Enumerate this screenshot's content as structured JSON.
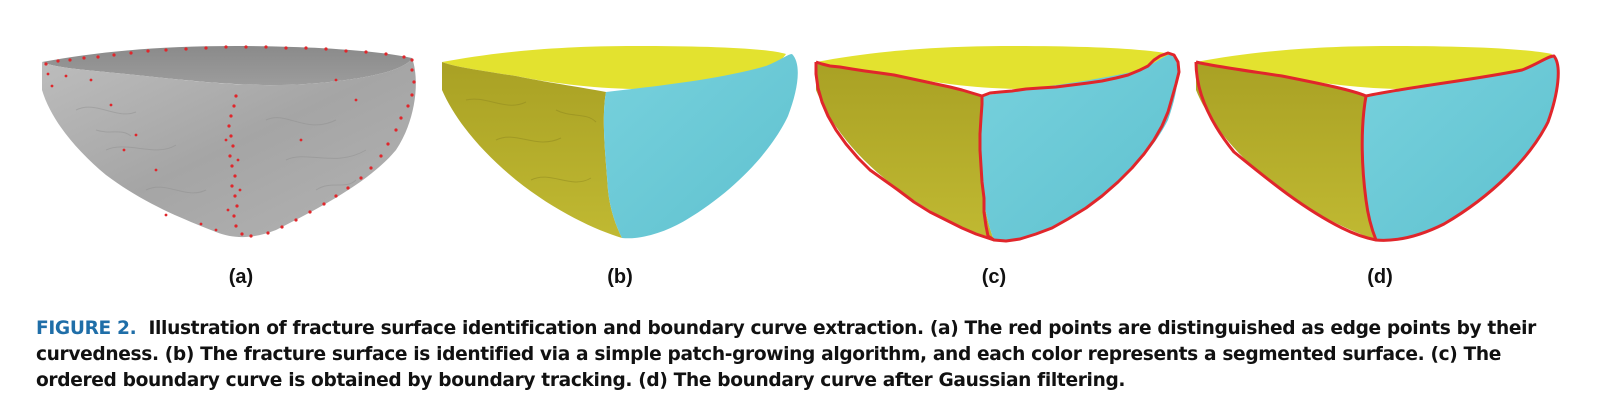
{
  "figure": {
    "panels": [
      {
        "label": "(a)"
      },
      {
        "label": "(b)"
      },
      {
        "label": "(c)"
      },
      {
        "label": "(d)"
      }
    ],
    "colors": {
      "gray_surface": "#a9a9a9",
      "yellow_top": "#e3e22f",
      "olive_fracture": "#b0a92a",
      "cyan_fracture": "#6ccad8",
      "boundary_red": "#e0262b"
    }
  },
  "caption": {
    "figure_label": "FIGURE 2.",
    "text": "Illustration of fracture surface identification and boundary curve extraction. (a) The red points are distinguished as edge points by their curvedness. (b) The fracture surface is identified via a simple patch-growing algorithm, and each color represents a segmented surface. (c) The ordered boundary curve is obtained by boundary tracking. (d) The boundary curve after Gaussian filtering."
  }
}
